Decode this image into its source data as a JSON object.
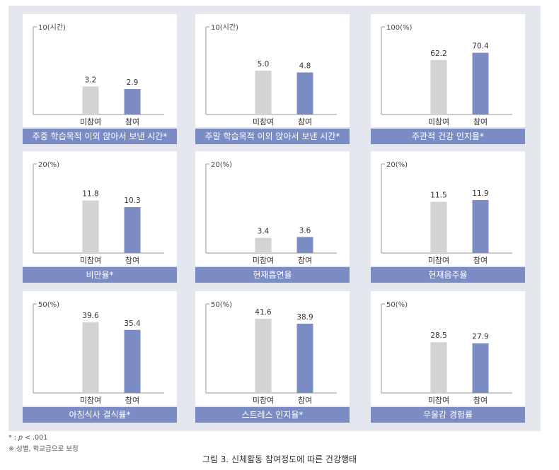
{
  "chart_data": [
    {
      "type": "bar",
      "title": "주중 학습목적 이외 앉아서 보낸 시간*",
      "ymax_label": "10(시간)",
      "ylim": [
        0,
        10
      ],
      "categories": [
        "미참여",
        "참여"
      ],
      "values": [
        3.2,
        2.9
      ],
      "value_labels": [
        "3.2",
        "2.9"
      ]
    },
    {
      "type": "bar",
      "title": "주말 학습목적 이외 앉아서 보낸 시간*",
      "ymax_label": "10(시간)",
      "ylim": [
        0,
        10
      ],
      "categories": [
        "미참여",
        "참여"
      ],
      "values": [
        5.0,
        4.8
      ],
      "value_labels": [
        "5.0",
        "4.8"
      ]
    },
    {
      "type": "bar",
      "title": "주관적 건강 인지율*",
      "ymax_label": "100(%)",
      "ylim": [
        0,
        100
      ],
      "categories": [
        "미참여",
        "참여"
      ],
      "values": [
        62.2,
        70.4
      ],
      "value_labels": [
        "62.2",
        "70.4"
      ]
    },
    {
      "type": "bar",
      "title": "비만율*",
      "ymax_label": "20(%)",
      "ylim": [
        0,
        20
      ],
      "categories": [
        "미참여",
        "참여"
      ],
      "values": [
        11.8,
        10.3
      ],
      "value_labels": [
        "11.8",
        "10.3"
      ]
    },
    {
      "type": "bar",
      "title": "현재흡연율",
      "ymax_label": "20(%)",
      "ylim": [
        0,
        20
      ],
      "categories": [
        "미참여",
        "참여"
      ],
      "values": [
        3.4,
        3.6
      ],
      "value_labels": [
        "3.4",
        "3.6"
      ]
    },
    {
      "type": "bar",
      "title": "현재음주율",
      "ymax_label": "20(%)",
      "ylim": [
        0,
        20
      ],
      "categories": [
        "미참여",
        "참여"
      ],
      "values": [
        11.5,
        11.9
      ],
      "value_labels": [
        "11.5",
        "11.9"
      ]
    },
    {
      "type": "bar",
      "title": "아침식사 결식률*",
      "ymax_label": "50(%)",
      "ylim": [
        0,
        50
      ],
      "categories": [
        "미참여",
        "참여"
      ],
      "values": [
        39.6,
        35.4
      ],
      "value_labels": [
        "39.6",
        "35.4"
      ]
    },
    {
      "type": "bar",
      "title": "스트레스 인지율*",
      "ymax_label": "50(%)",
      "ylim": [
        0,
        50
      ],
      "categories": [
        "미참여",
        "참여"
      ],
      "values": [
        41.6,
        38.9
      ],
      "value_labels": [
        "41.6",
        "38.9"
      ]
    },
    {
      "type": "bar",
      "title": "우울감 경험률",
      "ymax_label": "50(%)",
      "ylim": [
        0,
        50
      ],
      "categories": [
        "미참여",
        "참여"
      ],
      "values": [
        28.5,
        27.9
      ],
      "value_labels": [
        "28.5",
        "27.9"
      ]
    }
  ],
  "colors": {
    "non_participant": "#d3d3d3",
    "participant": "#7b8cc4",
    "title_bar": "#7b8cc4",
    "background": "#e4e7ee"
  },
  "notes": {
    "significance_prefix": "* : ",
    "significance_p": "p",
    "significance_rest": " < .001",
    "adjustment": "※ 성별, 학교급으로 보정"
  },
  "caption": "그림 3. 신체활동 참여정도에 따른 건강행태"
}
